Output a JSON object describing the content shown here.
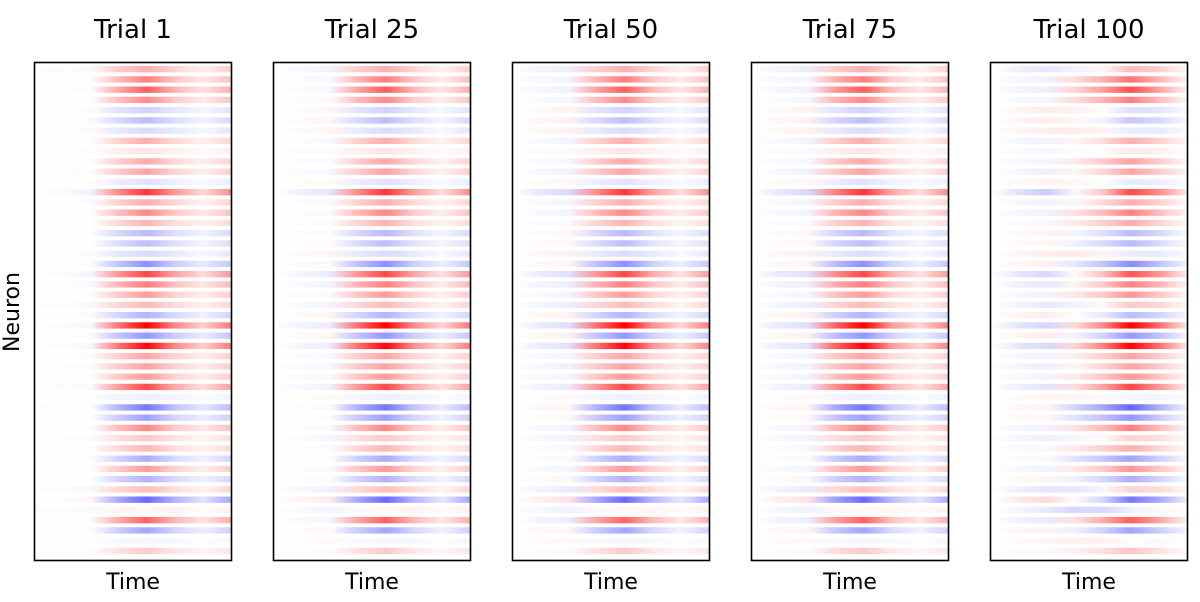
{
  "figure": {
    "ylabel": "Neuron"
  },
  "chart_data": [
    {
      "type": "heatmap",
      "title": "Trial 1",
      "xlabel": "Time",
      "ylabel": "Neuron",
      "grid": false,
      "profile": [
        [
          0.0,
          0.0
        ],
        [
          0.01,
          -0.02
        ],
        [
          0.04,
          -0.05
        ],
        [
          0.35,
          0.55
        ],
        [
          0.7,
          0.95
        ],
        [
          0.26,
          0.47
        ],
        [
          0.12,
          0.18
        ],
        [
          0.28,
          0.52
        ]
      ]
    },
    {
      "type": "heatmap",
      "title": "Trial 25",
      "xlabel": "Time",
      "ylabel": "Neuron",
      "grid": false,
      "profile": [
        [
          0.0,
          0.0
        ],
        [
          0.02,
          -0.06
        ],
        [
          0.05,
          -0.1
        ],
        [
          0.4,
          0.55
        ],
        [
          0.72,
          0.95
        ],
        [
          0.25,
          0.45
        ],
        [
          0.1,
          0.15
        ],
        [
          0.27,
          0.52
        ]
      ]
    },
    {
      "type": "heatmap",
      "title": "Trial 50",
      "xlabel": "Time",
      "ylabel": "Neuron",
      "grid": false,
      "profile": [
        [
          0.0,
          0.0
        ],
        [
          0.02,
          -0.1
        ],
        [
          0.05,
          -0.15
        ],
        [
          0.4,
          0.55
        ],
        [
          0.72,
          0.95
        ],
        [
          0.24,
          0.43
        ],
        [
          0.1,
          0.15
        ],
        [
          0.26,
          0.5
        ]
      ]
    },
    {
      "type": "heatmap",
      "title": "Trial 75",
      "xlabel": "Time",
      "ylabel": "Neuron",
      "grid": false,
      "profile": [
        [
          0.0,
          0.0
        ],
        [
          0.02,
          -0.1
        ],
        [
          0.05,
          -0.15
        ],
        [
          0.45,
          0.6
        ],
        [
          0.72,
          0.95
        ],
        [
          0.22,
          0.4
        ],
        [
          0.1,
          0.15
        ],
        [
          0.25,
          0.5
        ]
      ]
    },
    {
      "type": "heatmap",
      "title": "Trial 100",
      "xlabel": "Time",
      "ylabel": "Neuron",
      "grid": false,
      "profile": [
        [
          0.0,
          0.0
        ],
        [
          0.02,
          -0.12
        ],
        [
          0.08,
          -0.2
        ],
        [
          0.5,
          0.05
        ],
        [
          0.75,
          0.35
        ],
        [
          0.95,
          0.9
        ],
        [
          0.4,
          0.55
        ],
        [
          0.05,
          0.1
        ]
      ]
    }
  ],
  "neurons": [
    [
      -0.15,
      0.45
    ],
    [
      0.25,
      0.35
    ],
    [
      0.3,
      0.45
    ],
    [
      0.25,
      0.3
    ],
    [
      0.15,
      -0.3
    ],
    [
      0.1,
      -0.35
    ],
    [
      0.2,
      -0.3
    ],
    [
      0.05,
      0.3
    ],
    [
      -0.05,
      0.15
    ],
    [
      0.15,
      0.25
    ],
    [
      0.05,
      0.35
    ],
    [
      0.1,
      -0.2
    ],
    [
      -0.15,
      0.95
    ],
    [
      0.05,
      0.3
    ],
    [
      0.2,
      0.35
    ],
    [
      0.15,
      0.2
    ],
    [
      -0.05,
      -0.25
    ],
    [
      -0.1,
      -0.2
    ],
    [
      0.2,
      -0.3
    ],
    [
      -0.15,
      -0.35
    ],
    [
      -0.05,
      0.8
    ],
    [
      0.05,
      0.5
    ],
    [
      0.15,
      0.3
    ],
    [
      -0.15,
      0.4
    ],
    [
      0.05,
      -0.35
    ],
    [
      0.2,
      0.9
    ],
    [
      -0.05,
      -0.4
    ],
    [
      0.25,
      0.85
    ],
    [
      0.1,
      0.3
    ],
    [
      0.05,
      0.35
    ],
    [
      0.15,
      0.3
    ],
    [
      0.2,
      0.6
    ],
    [
      0.1,
      -0.15
    ],
    [
      -0.3,
      -0.35
    ],
    [
      -0.2,
      -0.25
    ],
    [
      0.2,
      0.35
    ],
    [
      -0.1,
      0.3
    ],
    [
      0.15,
      0.2
    ],
    [
      -0.2,
      -0.2
    ],
    [
      0.15,
      0.3
    ],
    [
      -0.1,
      -0.25
    ],
    [
      -0.25,
      0.45
    ],
    [
      0.1,
      -0.7
    ],
    [
      -0.35,
      0.3
    ],
    [
      0.2,
      0.5
    ],
    [
      -0.1,
      -0.3
    ],
    [
      0.15,
      -0.15
    ],
    [
      0.1,
      0.15
    ]
  ],
  "colors": {
    "negative": "#0000ff",
    "neutral": "#ffffff",
    "positive": "#ff0000",
    "frame": "#000000",
    "background": "#ffffff"
  },
  "colormap": "bwr"
}
